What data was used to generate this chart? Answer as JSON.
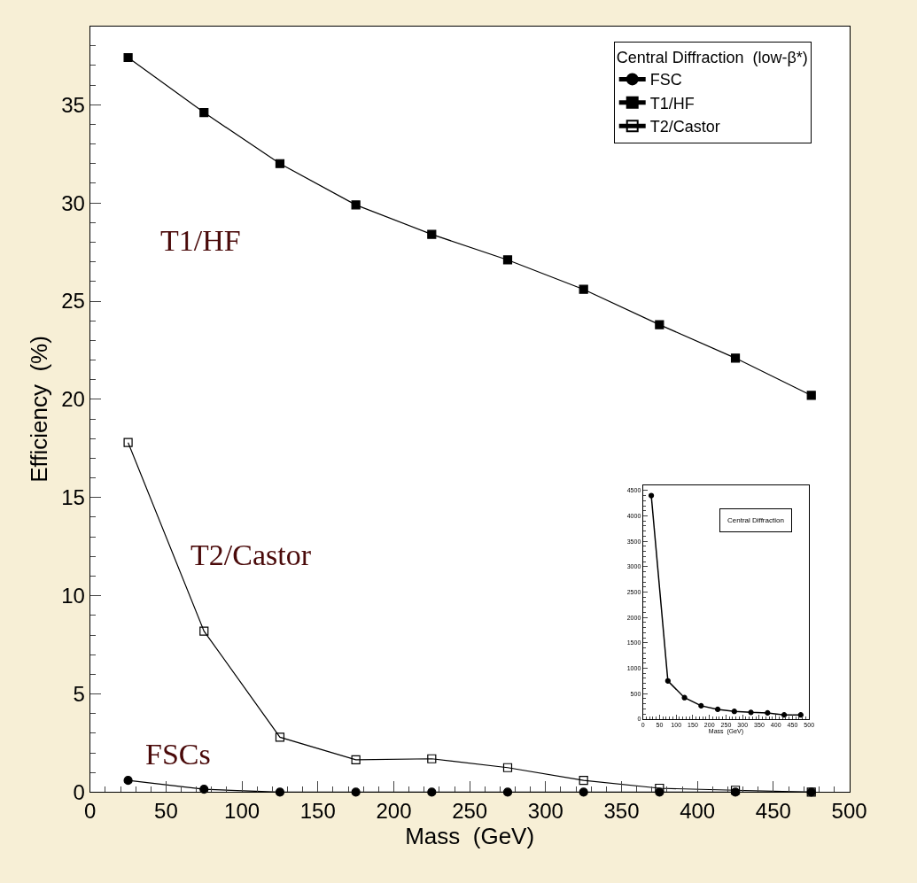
{
  "chart_data": [
    {
      "type": "line",
      "xlabel": "Mass  (GeV)",
      "ylabel": "Efficiency  (%)",
      "legend_title": "Central Diffraction  (low-β*)",
      "legend": "top right",
      "grid": false,
      "x": [
        25,
        75,
        125,
        175,
        225,
        275,
        325,
        375,
        425,
        475
      ],
      "xlim": [
        0,
        500
      ],
      "xticks": [
        0,
        50,
        100,
        150,
        200,
        250,
        300,
        350,
        400,
        450,
        500
      ],
      "ylim": [
        0,
        39
      ],
      "yticks": [
        0,
        5,
        10,
        15,
        20,
        25,
        30,
        35
      ],
      "series": [
        {
          "name": "FSC",
          "color": "#000000",
          "marker": "circle",
          "values": [
            0.6,
            0.15,
            0,
            0,
            0,
            0,
            0,
            0,
            0,
            0
          ]
        },
        {
          "name": "T1/HF",
          "color": "#000000",
          "marker": "square",
          "values": [
            37.4,
            34.6,
            32.0,
            29.9,
            28.4,
            27.1,
            25.6,
            23.8,
            22.1,
            20.2
          ]
        },
        {
          "name": "T2/Castor",
          "color": "#000000",
          "marker": "square-open",
          "values": [
            17.8,
            8.2,
            2.8,
            1.65,
            1.7,
            1.25,
            0.6,
            0.2,
            0.1,
            0
          ]
        }
      ],
      "annotations": [
        "T1/HF",
        "T2/Castor",
        "FSCs"
      ]
    },
    {
      "type": "line",
      "xlabel": "Mass  (GeV)",
      "legend_title": "Central Diffraction",
      "grid": false,
      "x": [
        25,
        75,
        125,
        175,
        225,
        275,
        325,
        375,
        425,
        475
      ],
      "xlim": [
        0,
        500
      ],
      "xticks": [
        0,
        50,
        100,
        150,
        200,
        250,
        300,
        350,
        400,
        450,
        500
      ],
      "ylim": [
        0,
        4600
      ],
      "yticks": [
        0,
        500,
        1000,
        1500,
        2000,
        2500,
        3000,
        3500,
        4000,
        4500
      ],
      "series": [
        {
          "color": "#000000",
          "marker": "circle",
          "values": [
            4400,
            750,
            420,
            260,
            190,
            150,
            130,
            120,
            80,
            80
          ]
        }
      ]
    }
  ]
}
